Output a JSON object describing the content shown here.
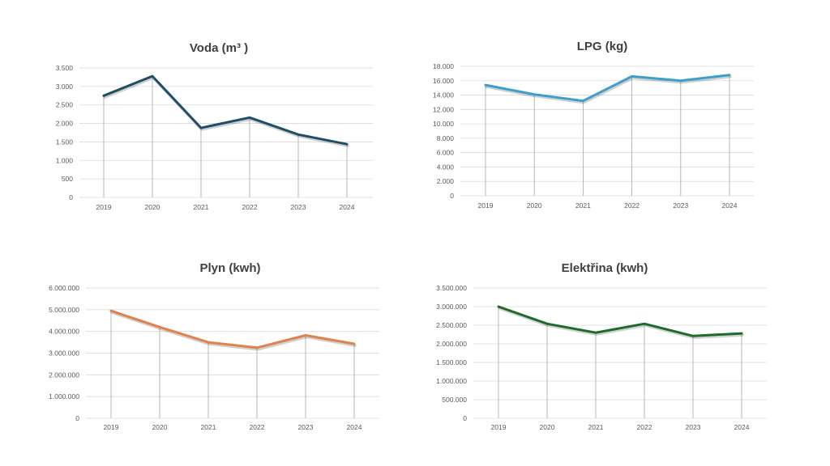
{
  "chart_data": [
    {
      "type": "line",
      "title": "Voda (m³ )",
      "categories": [
        "2019",
        "2020",
        "2021",
        "2022",
        "2023",
        "2024"
      ],
      "series": [
        {
          "values": [
            2750,
            3280,
            1880,
            2160,
            1700,
            1440
          ]
        }
      ],
      "ylim": [
        0,
        3500
      ],
      "yticks": [
        0,
        500,
        1000,
        1500,
        2000,
        2500,
        3000,
        3500
      ],
      "ytick_labels": [
        "0",
        "500",
        "1.000",
        "1.500",
        "2.000",
        "2.500",
        "3.000",
        "3.500"
      ],
      "grid": true,
      "color": "#1f4e6b"
    },
    {
      "type": "line",
      "title": "LPG (kg)",
      "categories": [
        "2019",
        "2020",
        "2021",
        "2022",
        "2023",
        "2024"
      ],
      "series": [
        {
          "values": [
            15400,
            14100,
            13200,
            16600,
            16000,
            16800
          ]
        }
      ],
      "ylim": [
        0,
        18000
      ],
      "yticks": [
        0,
        2000,
        4000,
        6000,
        8000,
        10000,
        12000,
        14000,
        16000,
        18000
      ],
      "ytick_labels": [
        "0",
        "2.000",
        "4.000",
        "6.000",
        "8.000",
        "10.000",
        "12.000",
        "14.000",
        "16.000",
        "18.000"
      ],
      "grid": true,
      "color": "#3c9ecb"
    },
    {
      "type": "line",
      "title": "Plyn (kwh)",
      "categories": [
        "2019",
        "2020",
        "2021",
        "2022",
        "2023",
        "2024"
      ],
      "series": [
        {
          "values": [
            4950000,
            4200000,
            3500000,
            3250000,
            3820000,
            3430000
          ]
        }
      ],
      "ylim": [
        0,
        6000000
      ],
      "yticks": [
        0,
        1000000,
        2000000,
        3000000,
        4000000,
        5000000,
        6000000
      ],
      "ytick_labels": [
        "0",
        "1.000.000",
        "2.000.000",
        "3.000.000",
        "4.000.000",
        "5.000.000",
        "6.000.000"
      ],
      "grid": true,
      "color": "#e0824e"
    },
    {
      "type": "line",
      "title": "Elektřina (kwh)",
      "categories": [
        "2019",
        "2020",
        "2021",
        "2022",
        "2023",
        "2024"
      ],
      "series": [
        {
          "values": [
            3000000,
            2540000,
            2300000,
            2540000,
            2210000,
            2280000
          ]
        }
      ],
      "ylim": [
        0,
        3500000
      ],
      "yticks": [
        0,
        500000,
        1000000,
        1500000,
        2000000,
        2500000,
        3000000,
        3500000
      ],
      "ytick_labels": [
        "0",
        "500.000",
        "1.000.000",
        "1.500.000",
        "2.000.000",
        "2.500.000",
        "3.000.000",
        "3.500.000"
      ],
      "grid": true,
      "color": "#1e6b27"
    }
  ]
}
